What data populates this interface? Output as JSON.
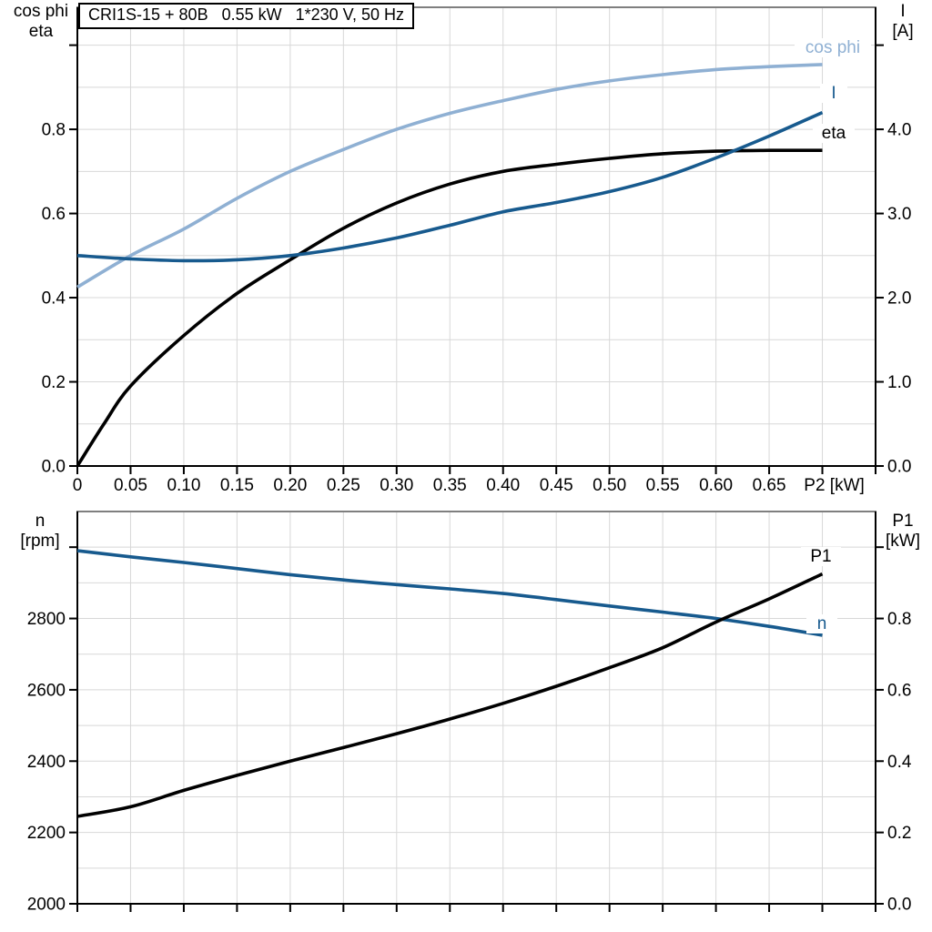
{
  "styles": {
    "grid_color": "#D8D8D8",
    "axis_color": "#000000",
    "top_border_color": "#7F7F7F",
    "dark_blue": "#175A8E",
    "light_blue": "#8FB0D3"
  },
  "chart_data": [
    {
      "type": "line",
      "title": "CRI1S-15 + 80B   0.55 kW   1*230 V, 50 Hz",
      "x_axis": {
        "min": 0,
        "max": 0.75,
        "tick_step": 0.05,
        "unit_label": "P2 [kW]",
        "tick_labels": [
          "0",
          "0.05",
          "0.10",
          "0.15",
          "0.20",
          "0.25",
          "0.30",
          "0.35",
          "0.40",
          "0.45",
          "0.50",
          "0.55",
          "0.60",
          "0.65",
          "",
          ""
        ]
      },
      "left_axis": {
        "title_lines": [
          "cos phi",
          "eta"
        ],
        "min": 0,
        "max": 1.09,
        "minor_grid_step": 0.1,
        "ticks": [
          {
            "v": 0,
            "label": "0.0"
          },
          {
            "v": 0.2,
            "label": "0.2"
          },
          {
            "v": 0.4,
            "label": "0.4"
          },
          {
            "v": 0.6,
            "label": "0.6"
          },
          {
            "v": 0.8,
            "label": "0.8"
          },
          {
            "v": 1.0,
            "label": ""
          }
        ]
      },
      "right_axis": {
        "title_lines": [
          "I",
          "[A]"
        ],
        "min": 0,
        "max": 5.45,
        "ticks": [
          {
            "v": 0,
            "label": "0.0"
          },
          {
            "v": 1,
            "label": "1.0"
          },
          {
            "v": 2,
            "label": "2.0"
          },
          {
            "v": 3,
            "label": "3.0"
          },
          {
            "v": 4,
            "label": "4.0"
          },
          {
            "v": 5,
            "label": ""
          }
        ]
      },
      "series": [
        {
          "name": "cos phi",
          "axis": "left",
          "color": "#8FB0D3",
          "points": [
            [
              0,
              0.425
            ],
            [
              0.05,
              0.5
            ],
            [
              0.1,
              0.563
            ],
            [
              0.15,
              0.636
            ],
            [
              0.2,
              0.7
            ],
            [
              0.25,
              0.752
            ],
            [
              0.3,
              0.8
            ],
            [
              0.35,
              0.838
            ],
            [
              0.4,
              0.868
            ],
            [
              0.45,
              0.895
            ],
            [
              0.5,
              0.915
            ],
            [
              0.55,
              0.93
            ],
            [
              0.6,
              0.942
            ],
            [
              0.65,
              0.949
            ],
            [
              0.7,
              0.954
            ]
          ]
        },
        {
          "name": "eta",
          "axis": "left",
          "color": "#000000",
          "points": [
            [
              0,
              0
            ],
            [
              0.025,
              0.1
            ],
            [
              0.05,
              0.19
            ],
            [
              0.1,
              0.31
            ],
            [
              0.15,
              0.41
            ],
            [
              0.2,
              0.49
            ],
            [
              0.25,
              0.565
            ],
            [
              0.3,
              0.625
            ],
            [
              0.35,
              0.67
            ],
            [
              0.4,
              0.7
            ],
            [
              0.45,
              0.717
            ],
            [
              0.5,
              0.731
            ],
            [
              0.55,
              0.742
            ],
            [
              0.6,
              0.748
            ],
            [
              0.65,
              0.75
            ],
            [
              0.7,
              0.75
            ]
          ]
        },
        {
          "name": "I",
          "axis": "right",
          "color": "#175A8E",
          "points": [
            [
              0,
              2.5
            ],
            [
              0.05,
              2.46
            ],
            [
              0.1,
              2.44
            ],
            [
              0.15,
              2.45
            ],
            [
              0.2,
              2.5
            ],
            [
              0.25,
              2.59
            ],
            [
              0.3,
              2.71
            ],
            [
              0.35,
              2.86
            ],
            [
              0.4,
              3.02
            ],
            [
              0.45,
              3.13
            ],
            [
              0.5,
              3.26
            ],
            [
              0.55,
              3.43
            ],
            [
              0.6,
              3.66
            ],
            [
              0.65,
              3.92
            ],
            [
              0.7,
              4.2
            ]
          ]
        }
      ]
    },
    {
      "type": "line",
      "x_axis": {
        "min": 0,
        "max": 0.75,
        "tick_step": 0.05,
        "tick_labels": []
      },
      "left_axis": {
        "title_lines": [
          "n",
          "[rpm]"
        ],
        "min": 2000,
        "max": 3100,
        "minor_grid_step": 100,
        "ticks": [
          {
            "v": 2000,
            "label": "2000"
          },
          {
            "v": 2200,
            "label": "2200"
          },
          {
            "v": 2400,
            "label": "2400"
          },
          {
            "v": 2600,
            "label": "2600"
          },
          {
            "v": 2800,
            "label": "2800"
          },
          {
            "v": 3000,
            "label": ""
          }
        ]
      },
      "right_axis": {
        "title_lines": [
          "P1",
          "[kW]"
        ],
        "min": 0,
        "max": 1.1,
        "ticks": [
          {
            "v": 0,
            "label": "0.0"
          },
          {
            "v": 0.2,
            "label": "0.2"
          },
          {
            "v": 0.4,
            "label": "0.4"
          },
          {
            "v": 0.6,
            "label": "0.6"
          },
          {
            "v": 0.8,
            "label": "0.8"
          },
          {
            "v": 1.0,
            "label": ""
          }
        ]
      },
      "series": [
        {
          "name": "n",
          "axis": "left",
          "color": "#175A8E",
          "points": [
            [
              0,
              2990
            ],
            [
              0.05,
              2973
            ],
            [
              0.1,
              2957
            ],
            [
              0.15,
              2940
            ],
            [
              0.2,
              2923
            ],
            [
              0.25,
              2908
            ],
            [
              0.3,
              2895
            ],
            [
              0.35,
              2883
            ],
            [
              0.4,
              2870
            ],
            [
              0.45,
              2853
            ],
            [
              0.5,
              2835
            ],
            [
              0.55,
              2818
            ],
            [
              0.6,
              2800
            ],
            [
              0.65,
              2778
            ],
            [
              0.7,
              2753
            ]
          ]
        },
        {
          "name": "P1",
          "axis": "right",
          "color": "#000000",
          "points": [
            [
              0,
              0.245
            ],
            [
              0.05,
              0.272
            ],
            [
              0.1,
              0.318
            ],
            [
              0.15,
              0.36
            ],
            [
              0.2,
              0.4
            ],
            [
              0.25,
              0.438
            ],
            [
              0.3,
              0.477
            ],
            [
              0.35,
              0.518
            ],
            [
              0.4,
              0.562
            ],
            [
              0.45,
              0.61
            ],
            [
              0.5,
              0.662
            ],
            [
              0.55,
              0.718
            ],
            [
              0.6,
              0.79
            ],
            [
              0.65,
              0.855
            ],
            [
              0.7,
              0.925
            ]
          ]
        }
      ]
    }
  ]
}
